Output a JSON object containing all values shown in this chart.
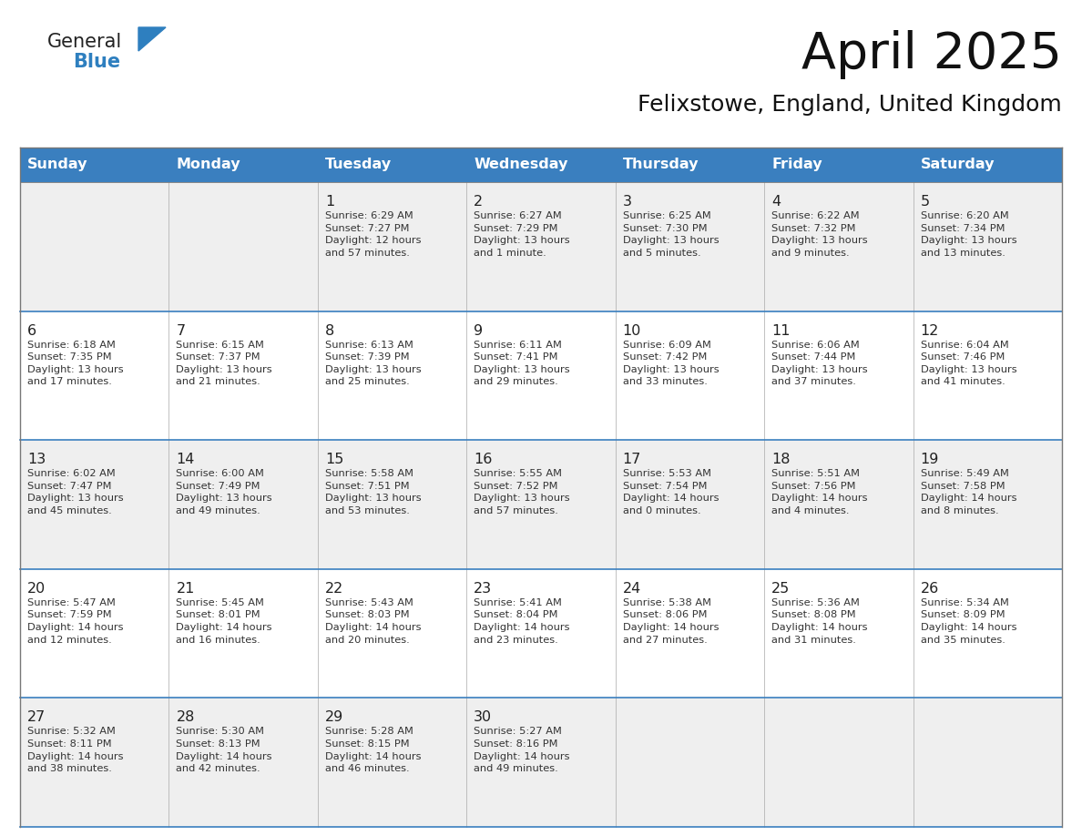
{
  "title": "April 2025",
  "subtitle": "Felixstowe, England, United Kingdom",
  "days_of_week": [
    "Sunday",
    "Monday",
    "Tuesday",
    "Wednesday",
    "Thursday",
    "Friday",
    "Saturday"
  ],
  "header_bg": "#3A7FBF",
  "header_text": "#FFFFFF",
  "row_bg_even": "#EFEFEF",
  "row_bg_odd": "#FFFFFF",
  "cell_border_color": "#AAAAAA",
  "row_divider_color": "#3A7FBF",
  "day_num_color": "#222222",
  "text_color": "#333333",
  "logo_general_color": "#222222",
  "logo_blue_color": "#2E7FBF",
  "title_color": "#111111",
  "subtitle_color": "#111111",
  "calendar_data": [
    [
      {
        "day": "",
        "info": ""
      },
      {
        "day": "",
        "info": ""
      },
      {
        "day": "1",
        "info": "Sunrise: 6:29 AM\nSunset: 7:27 PM\nDaylight: 12 hours\nand 57 minutes."
      },
      {
        "day": "2",
        "info": "Sunrise: 6:27 AM\nSunset: 7:29 PM\nDaylight: 13 hours\nand 1 minute."
      },
      {
        "day": "3",
        "info": "Sunrise: 6:25 AM\nSunset: 7:30 PM\nDaylight: 13 hours\nand 5 minutes."
      },
      {
        "day": "4",
        "info": "Sunrise: 6:22 AM\nSunset: 7:32 PM\nDaylight: 13 hours\nand 9 minutes."
      },
      {
        "day": "5",
        "info": "Sunrise: 6:20 AM\nSunset: 7:34 PM\nDaylight: 13 hours\nand 13 minutes."
      }
    ],
    [
      {
        "day": "6",
        "info": "Sunrise: 6:18 AM\nSunset: 7:35 PM\nDaylight: 13 hours\nand 17 minutes."
      },
      {
        "day": "7",
        "info": "Sunrise: 6:15 AM\nSunset: 7:37 PM\nDaylight: 13 hours\nand 21 minutes."
      },
      {
        "day": "8",
        "info": "Sunrise: 6:13 AM\nSunset: 7:39 PM\nDaylight: 13 hours\nand 25 minutes."
      },
      {
        "day": "9",
        "info": "Sunrise: 6:11 AM\nSunset: 7:41 PM\nDaylight: 13 hours\nand 29 minutes."
      },
      {
        "day": "10",
        "info": "Sunrise: 6:09 AM\nSunset: 7:42 PM\nDaylight: 13 hours\nand 33 minutes."
      },
      {
        "day": "11",
        "info": "Sunrise: 6:06 AM\nSunset: 7:44 PM\nDaylight: 13 hours\nand 37 minutes."
      },
      {
        "day": "12",
        "info": "Sunrise: 6:04 AM\nSunset: 7:46 PM\nDaylight: 13 hours\nand 41 minutes."
      }
    ],
    [
      {
        "day": "13",
        "info": "Sunrise: 6:02 AM\nSunset: 7:47 PM\nDaylight: 13 hours\nand 45 minutes."
      },
      {
        "day": "14",
        "info": "Sunrise: 6:00 AM\nSunset: 7:49 PM\nDaylight: 13 hours\nand 49 minutes."
      },
      {
        "day": "15",
        "info": "Sunrise: 5:58 AM\nSunset: 7:51 PM\nDaylight: 13 hours\nand 53 minutes."
      },
      {
        "day": "16",
        "info": "Sunrise: 5:55 AM\nSunset: 7:52 PM\nDaylight: 13 hours\nand 57 minutes."
      },
      {
        "day": "17",
        "info": "Sunrise: 5:53 AM\nSunset: 7:54 PM\nDaylight: 14 hours\nand 0 minutes."
      },
      {
        "day": "18",
        "info": "Sunrise: 5:51 AM\nSunset: 7:56 PM\nDaylight: 14 hours\nand 4 minutes."
      },
      {
        "day": "19",
        "info": "Sunrise: 5:49 AM\nSunset: 7:58 PM\nDaylight: 14 hours\nand 8 minutes."
      }
    ],
    [
      {
        "day": "20",
        "info": "Sunrise: 5:47 AM\nSunset: 7:59 PM\nDaylight: 14 hours\nand 12 minutes."
      },
      {
        "day": "21",
        "info": "Sunrise: 5:45 AM\nSunset: 8:01 PM\nDaylight: 14 hours\nand 16 minutes."
      },
      {
        "day": "22",
        "info": "Sunrise: 5:43 AM\nSunset: 8:03 PM\nDaylight: 14 hours\nand 20 minutes."
      },
      {
        "day": "23",
        "info": "Sunrise: 5:41 AM\nSunset: 8:04 PM\nDaylight: 14 hours\nand 23 minutes."
      },
      {
        "day": "24",
        "info": "Sunrise: 5:38 AM\nSunset: 8:06 PM\nDaylight: 14 hours\nand 27 minutes."
      },
      {
        "day": "25",
        "info": "Sunrise: 5:36 AM\nSunset: 8:08 PM\nDaylight: 14 hours\nand 31 minutes."
      },
      {
        "day": "26",
        "info": "Sunrise: 5:34 AM\nSunset: 8:09 PM\nDaylight: 14 hours\nand 35 minutes."
      }
    ],
    [
      {
        "day": "27",
        "info": "Sunrise: 5:32 AM\nSunset: 8:11 PM\nDaylight: 14 hours\nand 38 minutes."
      },
      {
        "day": "28",
        "info": "Sunrise: 5:30 AM\nSunset: 8:13 PM\nDaylight: 14 hours\nand 42 minutes."
      },
      {
        "day": "29",
        "info": "Sunrise: 5:28 AM\nSunset: 8:15 PM\nDaylight: 14 hours\nand 46 minutes."
      },
      {
        "day": "30",
        "info": "Sunrise: 5:27 AM\nSunset: 8:16 PM\nDaylight: 14 hours\nand 49 minutes."
      },
      {
        "day": "",
        "info": ""
      },
      {
        "day": "",
        "info": ""
      },
      {
        "day": "",
        "info": ""
      }
    ]
  ]
}
